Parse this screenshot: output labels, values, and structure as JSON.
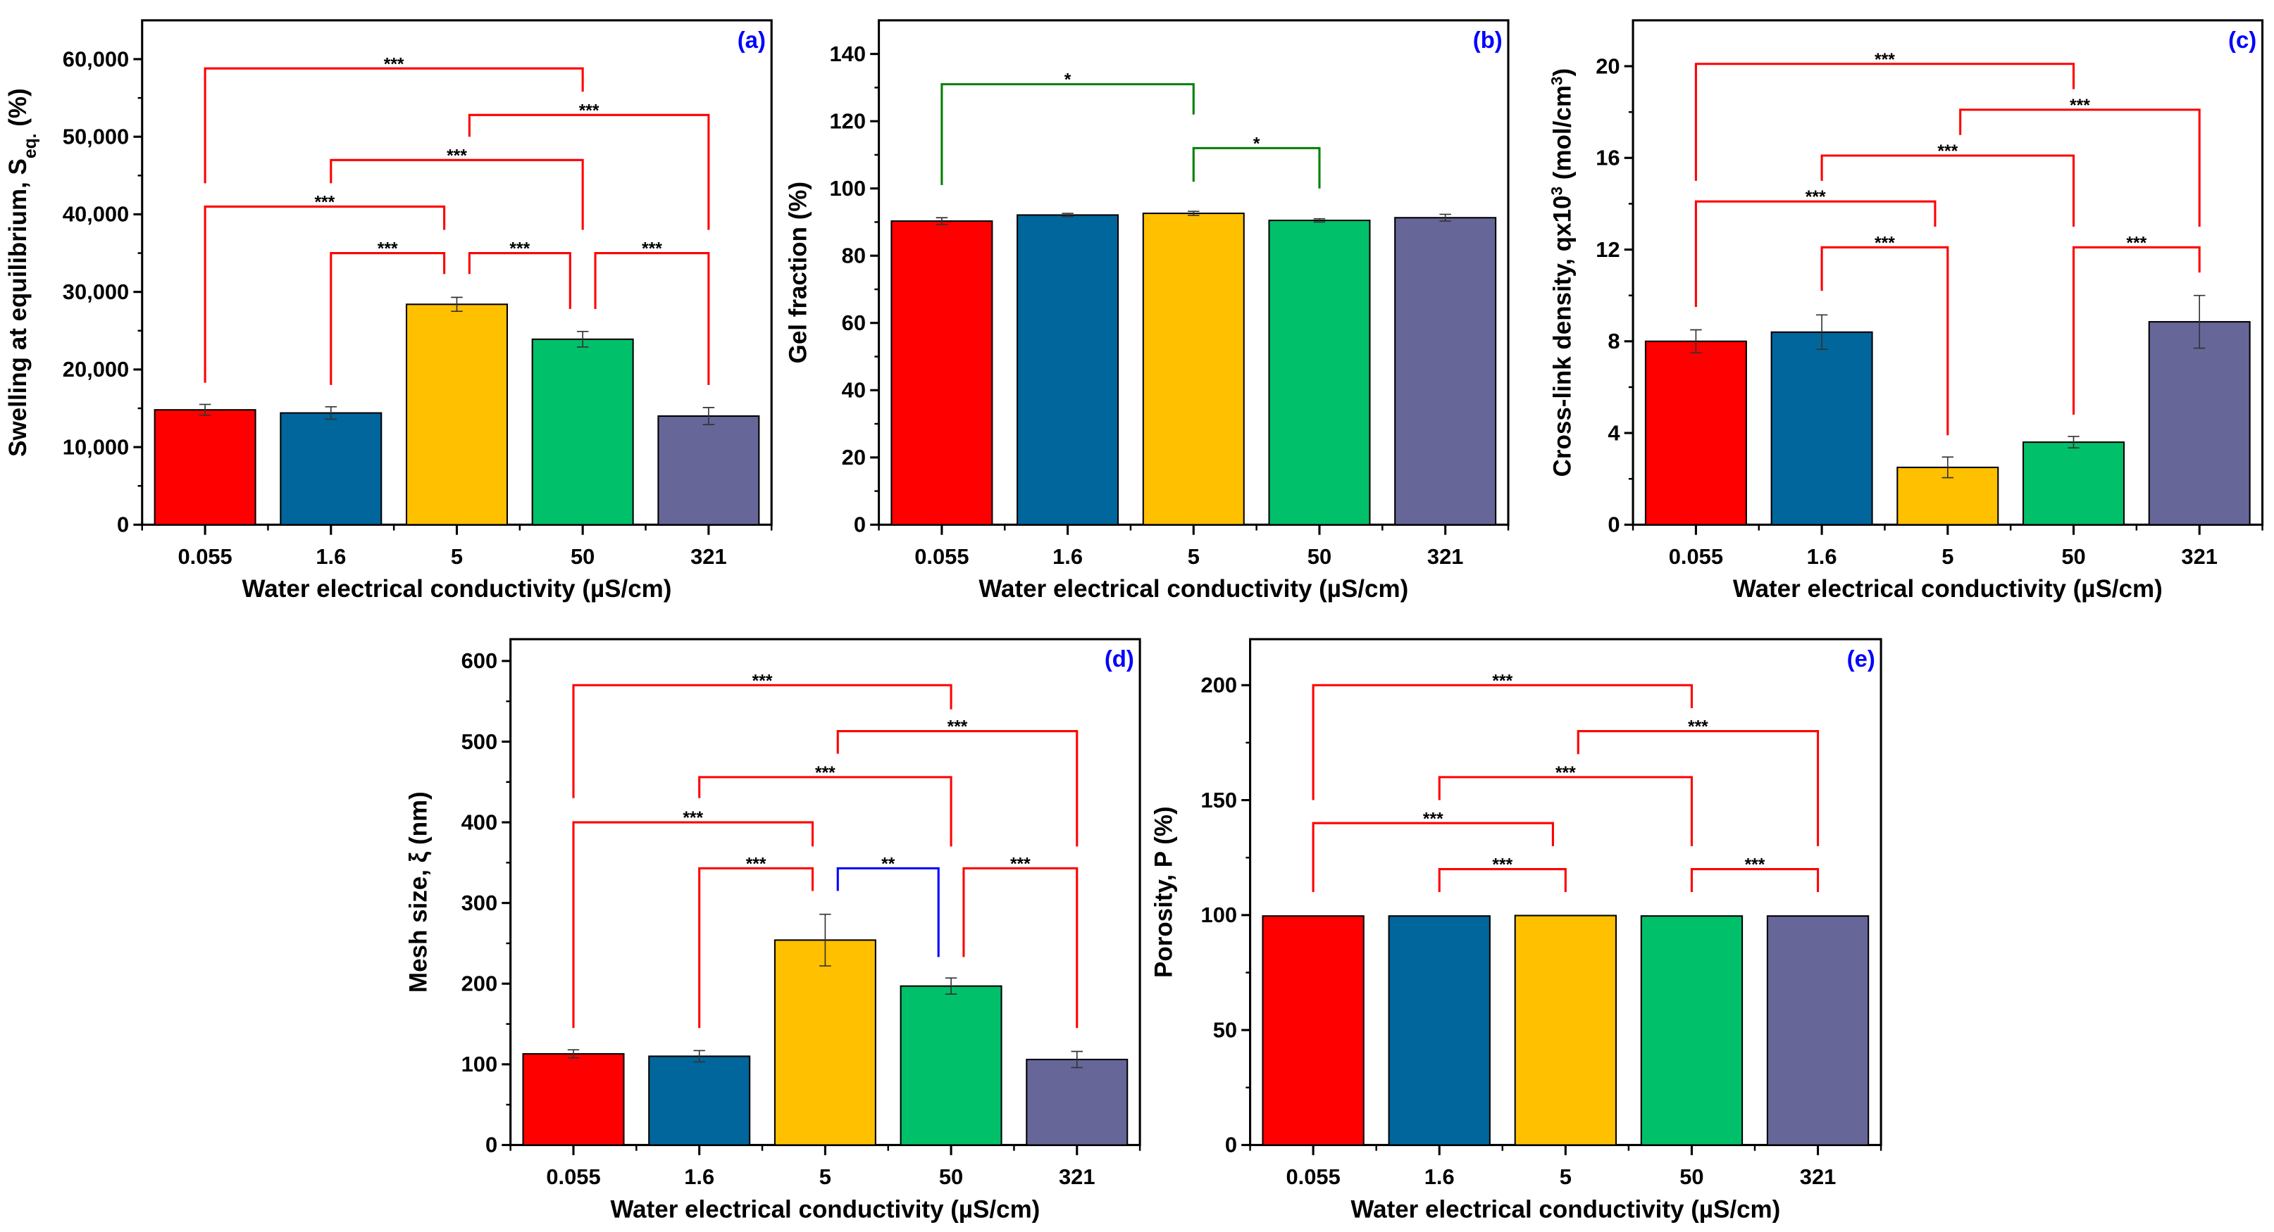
{
  "colors": {
    "bars": [
      "#FF0000",
      "#00669C",
      "#FFC000",
      "#00C06A",
      "#666699"
    ],
    "panel_label": "#0000FF"
  },
  "chart_data": [
    {
      "type": "bar",
      "panel_label": "(a)",
      "categories": [
        "0.055",
        "1.6",
        "5",
        "50",
        "321"
      ],
      "values": [
        14800,
        14400,
        28400,
        23900,
        14000
      ],
      "errors": [
        700,
        800,
        900,
        1000,
        1100
      ],
      "xlabel": "Water electrical conductivity (µS/cm)",
      "ylabel": {
        "main": "Swelling at equilibrium, S",
        "sub": "eq.",
        "tail": " (%)"
      },
      "ylim": [
        0,
        65000
      ],
      "yticks": [
        0,
        10000,
        20000,
        30000,
        40000,
        50000,
        60000
      ],
      "ytick_labels": [
        "0",
        "10,000",
        "20,000",
        "30,000",
        "40,000",
        "50,000",
        "60,000"
      ],
      "significance": [
        {
          "from": 0,
          "to": 3,
          "y": 58800,
          "left_end": 44000,
          "right_end": 55800,
          "label": "***",
          "color": "#FF0000"
        },
        {
          "from": 2.1,
          "to": 4,
          "y": 52800,
          "left_end": 50000,
          "right_end": 38000,
          "label": "***",
          "color": "#FF0000"
        },
        {
          "from": 1,
          "to": 3,
          "y": 47000,
          "left_end": 44000,
          "right_end": 38000,
          "label": "***",
          "color": "#FF0000"
        },
        {
          "from": 0,
          "to": 1.9,
          "y": 41000,
          "left_end": 18300,
          "right_end": 38000,
          "label": "***",
          "color": "#FF0000"
        },
        {
          "from": 1,
          "to": 1.9,
          "y": 35000,
          "left_end": 18000,
          "right_end": 32300,
          "label": "***",
          "color": "#FF0000"
        },
        {
          "from": 2.1,
          "to": 2.9,
          "y": 35000,
          "left_end": 32300,
          "right_end": 27800,
          "label": "***",
          "color": "#FF0000"
        },
        {
          "from": 3.1,
          "to": 4,
          "y": 35000,
          "left_end": 27800,
          "right_end": 18000,
          "label": "***",
          "color": "#FF0000"
        }
      ]
    },
    {
      "type": "bar",
      "panel_label": "(b)",
      "categories": [
        "0.055",
        "1.6",
        "5",
        "50",
        "321"
      ],
      "values": [
        90.3,
        92.1,
        92.6,
        90.5,
        91.3
      ],
      "errors": [
        1.0,
        0.5,
        0.6,
        0.5,
        1.0
      ],
      "xlabel": "Water electrical conductivity (µS/cm)",
      "ylabel": {
        "main": "Gel fraction (%)"
      },
      "ylim": [
        0,
        150
      ],
      "yticks": [
        0,
        20,
        40,
        60,
        80,
        100,
        120,
        140
      ],
      "ytick_labels": [
        "0",
        "20",
        "40",
        "60",
        "80",
        "100",
        "120",
        "140"
      ],
      "significance": [
        {
          "from": 0,
          "to": 2,
          "y": 131,
          "left_end": 101,
          "right_end": 122,
          "label": "*",
          "color": "#008000"
        },
        {
          "from": 2,
          "to": 3,
          "y": 112,
          "left_end": 102,
          "right_end": 100,
          "label": "*",
          "color": "#008000"
        }
      ]
    },
    {
      "type": "bar",
      "panel_label": "(c)",
      "categories": [
        "0.055",
        "1.6",
        "5",
        "50",
        "321"
      ],
      "values": [
        8.0,
        8.4,
        2.5,
        3.6,
        8.85
      ],
      "errors": [
        0.5,
        0.75,
        0.45,
        0.25,
        1.15
      ],
      "xlabel": "Water electrical conductivity (µS/cm)",
      "ylabel": {
        "main": "Cross-link density, qx10",
        "sup1": "3",
        "mid": " (mol/cm",
        "sup2": "3",
        "tail": ")"
      },
      "ylim": [
        0,
        22
      ],
      "yticks": [
        0,
        4,
        8,
        12,
        16,
        20
      ],
      "ytick_labels": [
        "0",
        "4",
        "8",
        "12",
        "16",
        "20"
      ],
      "significance": [
        {
          "from": 0,
          "to": 3,
          "y": 20.1,
          "left_end": 15,
          "right_end": 19,
          "label": "***",
          "color": "#FF0000"
        },
        {
          "from": 2.1,
          "to": 4,
          "y": 18.1,
          "left_end": 17,
          "right_end": 13,
          "label": "***",
          "color": "#FF0000"
        },
        {
          "from": 1,
          "to": 3,
          "y": 16.1,
          "left_end": 15,
          "right_end": 13,
          "label": "***",
          "color": "#FF0000"
        },
        {
          "from": 0,
          "to": 1.9,
          "y": 14.1,
          "left_end": 9.5,
          "right_end": 13,
          "label": "***",
          "color": "#FF0000"
        },
        {
          "from": 1,
          "to": 2,
          "y": 12.1,
          "left_end": 10.2,
          "right_end": 3.9,
          "label": "***",
          "color": "#FF0000"
        },
        {
          "from": 3,
          "to": 4,
          "y": 12.1,
          "left_end": 4.8,
          "right_end": 11,
          "label": "***",
          "color": "#FF0000"
        }
      ]
    },
    {
      "type": "bar",
      "panel_label": "(d)",
      "categories": [
        "0.055",
        "1.6",
        "5",
        "50",
        "321"
      ],
      "values": [
        113,
        110,
        254,
        197,
        106
      ],
      "errors": [
        5,
        7,
        32,
        10,
        10
      ],
      "xlabel": "Water electrical conductivity (µS/cm)",
      "ylabel": {
        "main": "Mesh size, ξ (nm)"
      },
      "ylim": [
        0,
        627
      ],
      "yticks": [
        0,
        100,
        200,
        300,
        400,
        500,
        600
      ],
      "ytick_labels": [
        "0",
        "100",
        "200",
        "300",
        "400",
        "500",
        "600"
      ],
      "significance": [
        {
          "from": 0,
          "to": 3,
          "y": 570,
          "left_end": 430,
          "right_end": 540,
          "label": "***",
          "color": "#FF0000"
        },
        {
          "from": 2.1,
          "to": 4,
          "y": 513,
          "left_end": 485,
          "right_end": 370,
          "label": "***",
          "color": "#FF0000"
        },
        {
          "from": 1,
          "to": 3,
          "y": 456,
          "left_end": 430,
          "right_end": 370,
          "label": "***",
          "color": "#FF0000"
        },
        {
          "from": 0,
          "to": 1.9,
          "y": 400,
          "left_end": 145,
          "right_end": 370,
          "label": "***",
          "color": "#FF0000"
        },
        {
          "from": 1,
          "to": 1.9,
          "y": 343,
          "left_end": 145,
          "right_end": 315,
          "label": "***",
          "color": "#FF0000"
        },
        {
          "from": 2.1,
          "to": 2.9,
          "y": 343,
          "left_end": 315,
          "right_end": 233,
          "label": "**",
          "color": "#0000FF"
        },
        {
          "from": 3.1,
          "to": 4,
          "y": 343,
          "left_end": 233,
          "right_end": 145,
          "label": "***",
          "color": "#FF0000"
        }
      ]
    },
    {
      "type": "bar",
      "panel_label": "(e)",
      "categories": [
        "0.055",
        "1.6",
        "5",
        "50",
        "321"
      ],
      "values": [
        99.6,
        99.6,
        99.8,
        99.6,
        99.6
      ],
      "errors": [
        0,
        0,
        0,
        0,
        0
      ],
      "xlabel": "Water electrical conductivity (µS/cm)",
      "ylabel": {
        "main": "Porosity, P (%)"
      },
      "ylim": [
        0,
        220
      ],
      "yticks": [
        0,
        50,
        100,
        150,
        200
      ],
      "ytick_labels": [
        "0",
        "50",
        "100",
        "150",
        "200"
      ],
      "significance": [
        {
          "from": 0,
          "to": 3,
          "y": 200,
          "left_end": 150,
          "right_end": 190,
          "label": "***",
          "color": "#FF0000"
        },
        {
          "from": 2.1,
          "to": 4,
          "y": 180,
          "left_end": 170,
          "right_end": 130,
          "label": "***",
          "color": "#FF0000"
        },
        {
          "from": 1,
          "to": 3,
          "y": 160,
          "left_end": 150,
          "right_end": 130,
          "label": "***",
          "color": "#FF0000"
        },
        {
          "from": 0,
          "to": 1.9,
          "y": 140,
          "left_end": 110,
          "right_end": 130,
          "label": "***",
          "color": "#FF0000"
        },
        {
          "from": 1,
          "to": 2,
          "y": 120,
          "left_end": 110,
          "right_end": 110,
          "label": "***",
          "color": "#FF0000"
        },
        {
          "from": 3,
          "to": 4,
          "y": 120,
          "left_end": 110,
          "right_end": 110,
          "label": "***",
          "color": "#FF0000"
        }
      ]
    }
  ]
}
